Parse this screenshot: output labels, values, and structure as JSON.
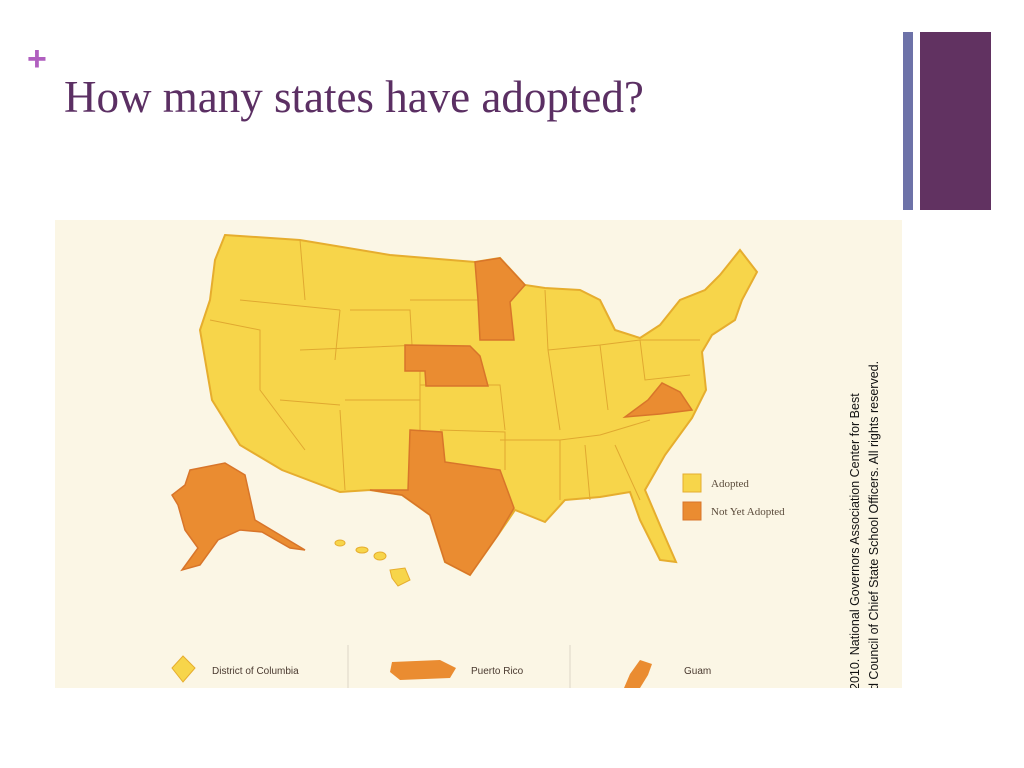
{
  "slide": {
    "bullet": "+",
    "title": "How many states have adopted?",
    "map": {
      "legend": [
        "Adopted",
        "Not Yet Adopted"
      ],
      "territories": [
        "District of Columbia",
        "Puerto Rico",
        "Guam"
      ],
      "credit": [
        "2010. National Governors Association Center for Best",
        "d Council of Chief State School Officers. All rights reserved."
      ]
    }
  }
}
